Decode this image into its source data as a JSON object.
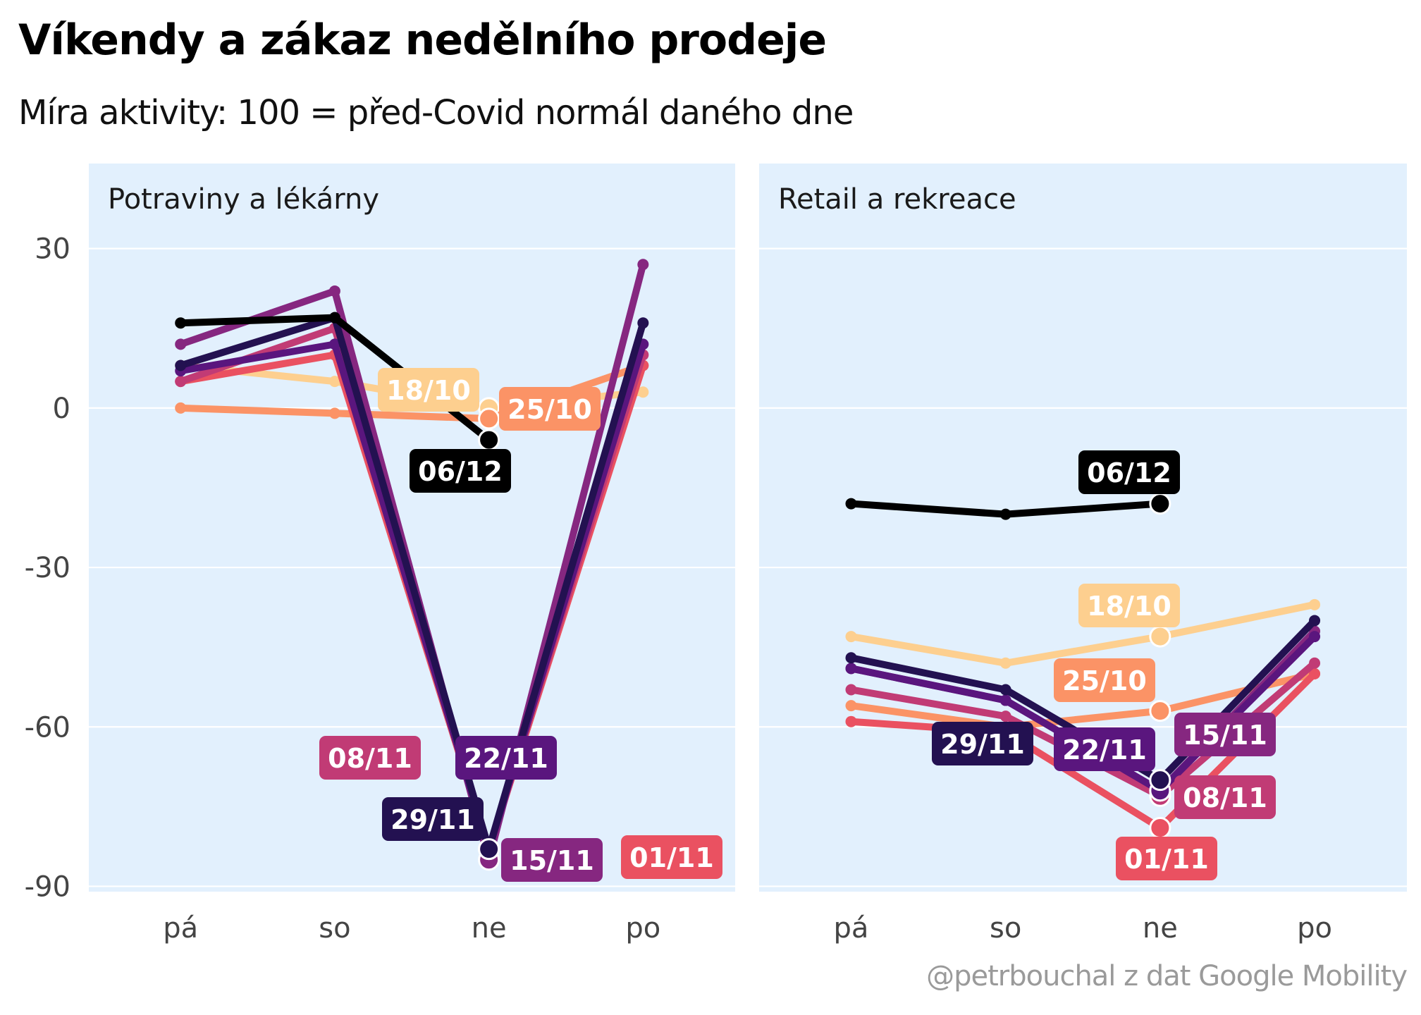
{
  "title": "Víkendy a zákaz nedělního prodeje",
  "subtitle": "Míra aktivity: 100 = před-Covid normál daného dne",
  "caption": "@petrbouchal z dat Google Mobility",
  "colors": {
    "panel_bg": "#e2f0fd",
    "grid": "#ffffff",
    "18/10": "#fdcf8f",
    "25/10": "#fb9366",
    "01/11": "#ea5161",
    "08/11": "#c13b75",
    "15/11": "#862780",
    "22/11": "#5a167e",
    "29/11": "#231151",
    "06/12": "#000000"
  },
  "chart_data": {
    "type": "line",
    "categories": [
      "pá",
      "so",
      "ne",
      "po"
    ],
    "y_ticks": [
      "30",
      "0",
      "-30",
      "-60",
      "-90"
    ],
    "ylim": [
      -91,
      46
    ],
    "grid": true,
    "panels": [
      {
        "title": "Potraviny a lékárny",
        "series": [
          {
            "name": "18/10",
            "values": [
              8,
              5,
              0,
              3
            ]
          },
          {
            "name": "25/10",
            "values": [
              0,
              -1,
              -2,
              8
            ]
          },
          {
            "name": "01/11",
            "values": [
              5,
              10,
              -83,
              8
            ]
          },
          {
            "name": "08/11",
            "values": [
              5,
              15,
              -83,
              10
            ]
          },
          {
            "name": "15/11",
            "values": [
              12,
              22,
              -85,
              27
            ]
          },
          {
            "name": "22/11",
            "values": [
              7,
              12,
              -83,
              12
            ]
          },
          {
            "name": "29/11",
            "values": [
              8,
              17,
              -83,
              16
            ]
          },
          {
            "name": "06/12",
            "values": [
              16,
              17,
              -6,
              null
            ]
          }
        ]
      },
      {
        "title": "Retail a rekreace",
        "series": [
          {
            "name": "18/10",
            "values": [
              -43,
              -48,
              -43,
              -37
            ]
          },
          {
            "name": "25/10",
            "values": [
              -56,
              -60,
              -57,
              -50
            ]
          },
          {
            "name": "01/11",
            "values": [
              -59,
              -61,
              -79,
              -50
            ]
          },
          {
            "name": "08/11",
            "values": [
              -53,
              -58,
              -73,
              -48
            ]
          },
          {
            "name": "15/11",
            "values": [
              -49,
              -55,
              -72,
              -42
            ]
          },
          {
            "name": "22/11",
            "values": [
              -49,
              -55,
              -72,
              -43
            ]
          },
          {
            "name": "29/11",
            "values": [
              -47,
              -53,
              -70,
              -40
            ]
          },
          {
            "name": "06/12",
            "values": [
              -18,
              -20,
              -18,
              null
            ]
          }
        ]
      }
    ]
  }
}
